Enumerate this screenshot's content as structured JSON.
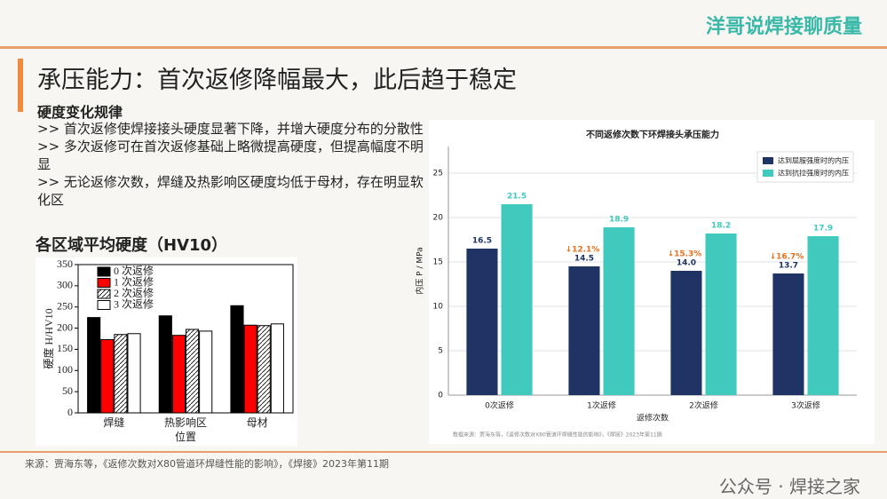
{
  "header": {
    "brand": "洋哥说焊接聊质量",
    "title": "承压能力：首次返修降幅最大，此后趋于稳定"
  },
  "section": {
    "heading": "硬度变化规律",
    "bullets": [
      ">> 首次返修使焊接接头硬度显著下降，并增大硬度分布的分散性",
      ">> 多次返修可在首次返修基础上略微提高硬度，但提高幅度不明显",
      ">> 无论返修次数，焊缝及热影响区硬度均低于母材，存在明显软化区"
    ]
  },
  "chart_data": [
    {
      "type": "bar",
      "title": "各区域平均硬度（HV10）",
      "xlabel": "位置",
      "ylabel": "硬度 H/HV10",
      "categories": [
        "焊缝",
        "热影响区",
        "母材"
      ],
      "series": [
        {
          "name": "0 次返修",
          "color": "#000000",
          "values": [
            225,
            229,
            253
          ]
        },
        {
          "name": "1 次返修",
          "color": "#ff0000",
          "values": [
            173,
            183,
            207
          ]
        },
        {
          "name": "2 次返修",
          "color": "#ffffff",
          "pattern": "/",
          "values": [
            185,
            197,
            206
          ]
        },
        {
          "name": "3 次返修",
          "color": "#ffffff",
          "pattern": "\\",
          "values": [
            187,
            193,
            210
          ]
        }
      ],
      "ylim": [
        0,
        350
      ],
      "yticks": [
        0,
        50,
        100,
        150,
        200,
        250,
        300,
        350
      ],
      "grid": false,
      "legend": "upper left"
    },
    {
      "type": "bar",
      "title": "不同返修次数下环焊接头承压能力",
      "xlabel": "返修次数",
      "ylabel": "内压 P / MPa",
      "categories": [
        "0次返修",
        "1次返修",
        "2次返修",
        "3次返修"
      ],
      "series": [
        {
          "name": "达到屈服强度时的内压",
          "color": "#1f3464",
          "values": [
            16.5,
            14.5,
            14.0,
            13.7
          ],
          "value_labels": [
            "16.5",
            "14.5",
            "14.0",
            "13.7"
          ]
        },
        {
          "name": "达到抗拉强度时的内压",
          "color": "#40c9bd",
          "values": [
            21.5,
            18.9,
            18.2,
            17.9
          ],
          "value_labels": [
            "21.5",
            "18.9",
            "18.2",
            "17.9"
          ]
        }
      ],
      "drop_labels": [
        null,
        "↓12.1%",
        "↓15.3%",
        "↓16.7%"
      ],
      "source": "数据来源：贾海东等，《返修次数对X80管道环焊缝性能的影响》，《焊接》2023年第11期",
      "ylim": [
        0,
        28
      ],
      "yticks": [
        0,
        5,
        10,
        15,
        20,
        25
      ],
      "grid": true,
      "legend": "upper right"
    }
  ],
  "footer": {
    "source": "来源：贾海东等，《返修次数对X80管道环焊缝性能的影响》，《焊接》2023年第11期",
    "watermark": "公众号 · 焊接之家"
  }
}
